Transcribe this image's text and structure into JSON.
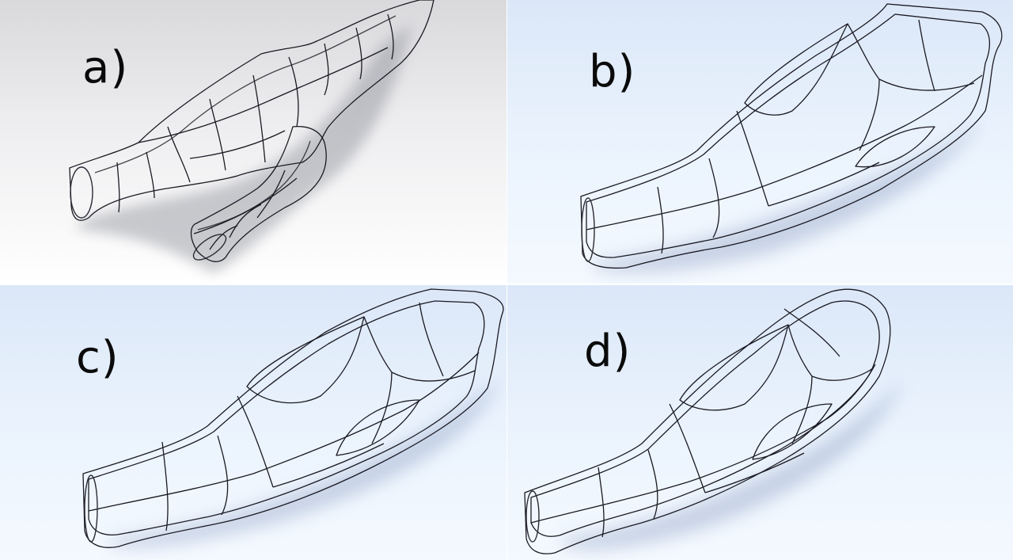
{
  "panels": [
    {
      "id": "a",
      "label": "a)"
    },
    {
      "id": "b",
      "label": "b)"
    },
    {
      "id": "c",
      "label": "c)"
    },
    {
      "id": "d",
      "label": "d)"
    }
  ],
  "colors": {
    "surface": "#aab4d6",
    "surface_light": "#c8d0ea",
    "surface_dark": "#7e89b4",
    "edge_lines": "#1a1a22",
    "background_a": "#eeeef0",
    "background_bcd": "#eaf3fd"
  }
}
